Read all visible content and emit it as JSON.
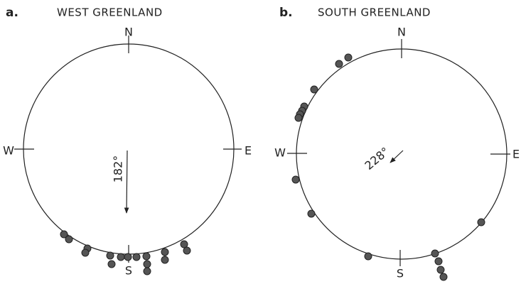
{
  "panel_a": {
    "label": "a.",
    "title": "WEST GREENLAND",
    "compass": {
      "n": "N",
      "e": "E",
      "s": "S",
      "w": "W"
    },
    "mean_direction": "182°"
  },
  "panel_b": {
    "label": "b.",
    "title": "SOUTH GREENLAND",
    "compass": {
      "n": "N",
      "e": "E",
      "s": "S",
      "w": "W"
    },
    "mean_direction": "228°"
  }
}
